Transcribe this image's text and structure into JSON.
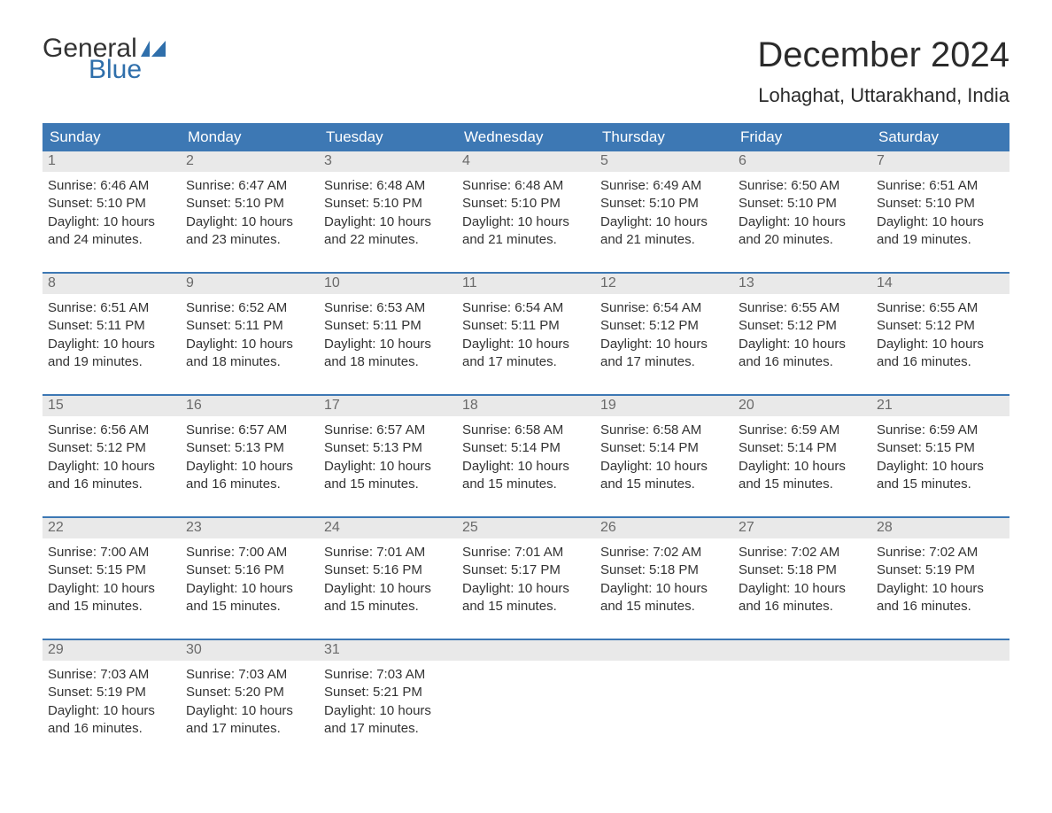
{
  "brand": {
    "general": "General",
    "blue": "Blue",
    "flag_color": "#2f6fab"
  },
  "title": "December 2024",
  "location": "Lohaghat, Uttarakhand, India",
  "colors": {
    "header_bg": "#3d78b4",
    "header_text": "#ffffff",
    "daynum_bg": "#e9e9e9",
    "daynum_text": "#6a6a6a",
    "body_text": "#333333",
    "week_border": "#3d78b4",
    "background": "#ffffff"
  },
  "weekdays": [
    "Sunday",
    "Monday",
    "Tuesday",
    "Wednesday",
    "Thursday",
    "Friday",
    "Saturday"
  ],
  "weeks": [
    [
      {
        "n": "1",
        "sunrise": "Sunrise: 6:46 AM",
        "sunset": "Sunset: 5:10 PM",
        "day1": "Daylight: 10 hours",
        "day2": "and 24 minutes."
      },
      {
        "n": "2",
        "sunrise": "Sunrise: 6:47 AM",
        "sunset": "Sunset: 5:10 PM",
        "day1": "Daylight: 10 hours",
        "day2": "and 23 minutes."
      },
      {
        "n": "3",
        "sunrise": "Sunrise: 6:48 AM",
        "sunset": "Sunset: 5:10 PM",
        "day1": "Daylight: 10 hours",
        "day2": "and 22 minutes."
      },
      {
        "n": "4",
        "sunrise": "Sunrise: 6:48 AM",
        "sunset": "Sunset: 5:10 PM",
        "day1": "Daylight: 10 hours",
        "day2": "and 21 minutes."
      },
      {
        "n": "5",
        "sunrise": "Sunrise: 6:49 AM",
        "sunset": "Sunset: 5:10 PM",
        "day1": "Daylight: 10 hours",
        "day2": "and 21 minutes."
      },
      {
        "n": "6",
        "sunrise": "Sunrise: 6:50 AM",
        "sunset": "Sunset: 5:10 PM",
        "day1": "Daylight: 10 hours",
        "day2": "and 20 minutes."
      },
      {
        "n": "7",
        "sunrise": "Sunrise: 6:51 AM",
        "sunset": "Sunset: 5:10 PM",
        "day1": "Daylight: 10 hours",
        "day2": "and 19 minutes."
      }
    ],
    [
      {
        "n": "8",
        "sunrise": "Sunrise: 6:51 AM",
        "sunset": "Sunset: 5:11 PM",
        "day1": "Daylight: 10 hours",
        "day2": "and 19 minutes."
      },
      {
        "n": "9",
        "sunrise": "Sunrise: 6:52 AM",
        "sunset": "Sunset: 5:11 PM",
        "day1": "Daylight: 10 hours",
        "day2": "and 18 minutes."
      },
      {
        "n": "10",
        "sunrise": "Sunrise: 6:53 AM",
        "sunset": "Sunset: 5:11 PM",
        "day1": "Daylight: 10 hours",
        "day2": "and 18 minutes."
      },
      {
        "n": "11",
        "sunrise": "Sunrise: 6:54 AM",
        "sunset": "Sunset: 5:11 PM",
        "day1": "Daylight: 10 hours",
        "day2": "and 17 minutes."
      },
      {
        "n": "12",
        "sunrise": "Sunrise: 6:54 AM",
        "sunset": "Sunset: 5:12 PM",
        "day1": "Daylight: 10 hours",
        "day2": "and 17 minutes."
      },
      {
        "n": "13",
        "sunrise": "Sunrise: 6:55 AM",
        "sunset": "Sunset: 5:12 PM",
        "day1": "Daylight: 10 hours",
        "day2": "and 16 minutes."
      },
      {
        "n": "14",
        "sunrise": "Sunrise: 6:55 AM",
        "sunset": "Sunset: 5:12 PM",
        "day1": "Daylight: 10 hours",
        "day2": "and 16 minutes."
      }
    ],
    [
      {
        "n": "15",
        "sunrise": "Sunrise: 6:56 AM",
        "sunset": "Sunset: 5:12 PM",
        "day1": "Daylight: 10 hours",
        "day2": "and 16 minutes."
      },
      {
        "n": "16",
        "sunrise": "Sunrise: 6:57 AM",
        "sunset": "Sunset: 5:13 PM",
        "day1": "Daylight: 10 hours",
        "day2": "and 16 minutes."
      },
      {
        "n": "17",
        "sunrise": "Sunrise: 6:57 AM",
        "sunset": "Sunset: 5:13 PM",
        "day1": "Daylight: 10 hours",
        "day2": "and 15 minutes."
      },
      {
        "n": "18",
        "sunrise": "Sunrise: 6:58 AM",
        "sunset": "Sunset: 5:14 PM",
        "day1": "Daylight: 10 hours",
        "day2": "and 15 minutes."
      },
      {
        "n": "19",
        "sunrise": "Sunrise: 6:58 AM",
        "sunset": "Sunset: 5:14 PM",
        "day1": "Daylight: 10 hours",
        "day2": "and 15 minutes."
      },
      {
        "n": "20",
        "sunrise": "Sunrise: 6:59 AM",
        "sunset": "Sunset: 5:14 PM",
        "day1": "Daylight: 10 hours",
        "day2": "and 15 minutes."
      },
      {
        "n": "21",
        "sunrise": "Sunrise: 6:59 AM",
        "sunset": "Sunset: 5:15 PM",
        "day1": "Daylight: 10 hours",
        "day2": "and 15 minutes."
      }
    ],
    [
      {
        "n": "22",
        "sunrise": "Sunrise: 7:00 AM",
        "sunset": "Sunset: 5:15 PM",
        "day1": "Daylight: 10 hours",
        "day2": "and 15 minutes."
      },
      {
        "n": "23",
        "sunrise": "Sunrise: 7:00 AM",
        "sunset": "Sunset: 5:16 PM",
        "day1": "Daylight: 10 hours",
        "day2": "and 15 minutes."
      },
      {
        "n": "24",
        "sunrise": "Sunrise: 7:01 AM",
        "sunset": "Sunset: 5:16 PM",
        "day1": "Daylight: 10 hours",
        "day2": "and 15 minutes."
      },
      {
        "n": "25",
        "sunrise": "Sunrise: 7:01 AM",
        "sunset": "Sunset: 5:17 PM",
        "day1": "Daylight: 10 hours",
        "day2": "and 15 minutes."
      },
      {
        "n": "26",
        "sunrise": "Sunrise: 7:02 AM",
        "sunset": "Sunset: 5:18 PM",
        "day1": "Daylight: 10 hours",
        "day2": "and 15 minutes."
      },
      {
        "n": "27",
        "sunrise": "Sunrise: 7:02 AM",
        "sunset": "Sunset: 5:18 PM",
        "day1": "Daylight: 10 hours",
        "day2": "and 16 minutes."
      },
      {
        "n": "28",
        "sunrise": "Sunrise: 7:02 AM",
        "sunset": "Sunset: 5:19 PM",
        "day1": "Daylight: 10 hours",
        "day2": "and 16 minutes."
      }
    ],
    [
      {
        "n": "29",
        "sunrise": "Sunrise: 7:03 AM",
        "sunset": "Sunset: 5:19 PM",
        "day1": "Daylight: 10 hours",
        "day2": "and 16 minutes."
      },
      {
        "n": "30",
        "sunrise": "Sunrise: 7:03 AM",
        "sunset": "Sunset: 5:20 PM",
        "day1": "Daylight: 10 hours",
        "day2": "and 17 minutes."
      },
      {
        "n": "31",
        "sunrise": "Sunrise: 7:03 AM",
        "sunset": "Sunset: 5:21 PM",
        "day1": "Daylight: 10 hours",
        "day2": "and 17 minutes."
      },
      null,
      null,
      null,
      null
    ]
  ]
}
